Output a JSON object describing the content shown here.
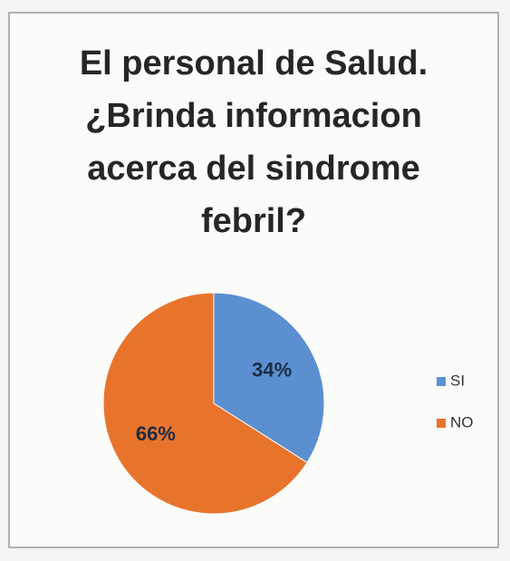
{
  "chart_data": {
    "type": "pie",
    "title": [
      "El personal de Salud.",
      "¿Brinda informacion",
      "acerca del sindrome",
      "febril?"
    ],
    "categories": [
      "SI",
      "NO"
    ],
    "values": [
      34,
      66
    ],
    "value_labels": [
      "34%",
      "66%"
    ],
    "colors": [
      "#5b8fd0",
      "#e8742c"
    ],
    "legend": "right"
  }
}
